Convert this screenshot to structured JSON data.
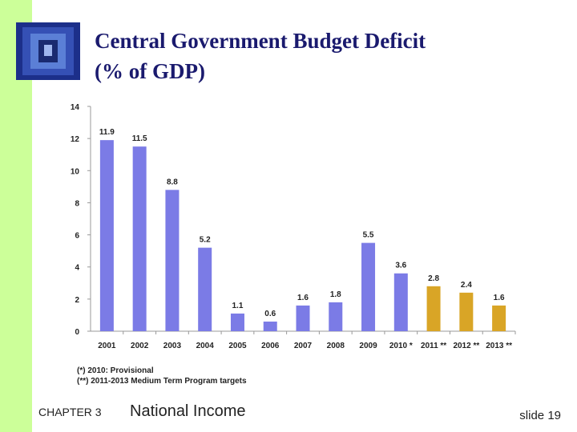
{
  "chart_data": {
    "type": "bar",
    "title": "Central Government Budget Deficit",
    "subtitle": "(% of GDP)",
    "categories": [
      "2001",
      "2002",
      "2003",
      "2004",
      "2005",
      "2006",
      "2007",
      "2008",
      "2009",
      "2010 *",
      "2011 **",
      "2012 **",
      "2013 **"
    ],
    "values": [
      11.9,
      11.5,
      8.8,
      5.2,
      1.1,
      0.6,
      1.6,
      1.8,
      5.5,
      3.6,
      2.8,
      2.4,
      1.6
    ],
    "colors": [
      "#7b7be6",
      "#7b7be6",
      "#7b7be6",
      "#7b7be6",
      "#7b7be6",
      "#7b7be6",
      "#7b7be6",
      "#7b7be6",
      "#7b7be6",
      "#7b7be6",
      "#d9a526",
      "#d9a526",
      "#d9a526"
    ],
    "ylim": [
      0,
      14
    ],
    "yticks": [
      0,
      2,
      4,
      6,
      8,
      10,
      12,
      14
    ],
    "grid": false,
    "footnotes": [
      "(*) 2010: Provisional",
      "(**) 2011-2013  Medium Term Program targets"
    ]
  },
  "footer": {
    "chapter": "CHAPTER 3",
    "topic": "National Income",
    "slide": "slide 19"
  }
}
